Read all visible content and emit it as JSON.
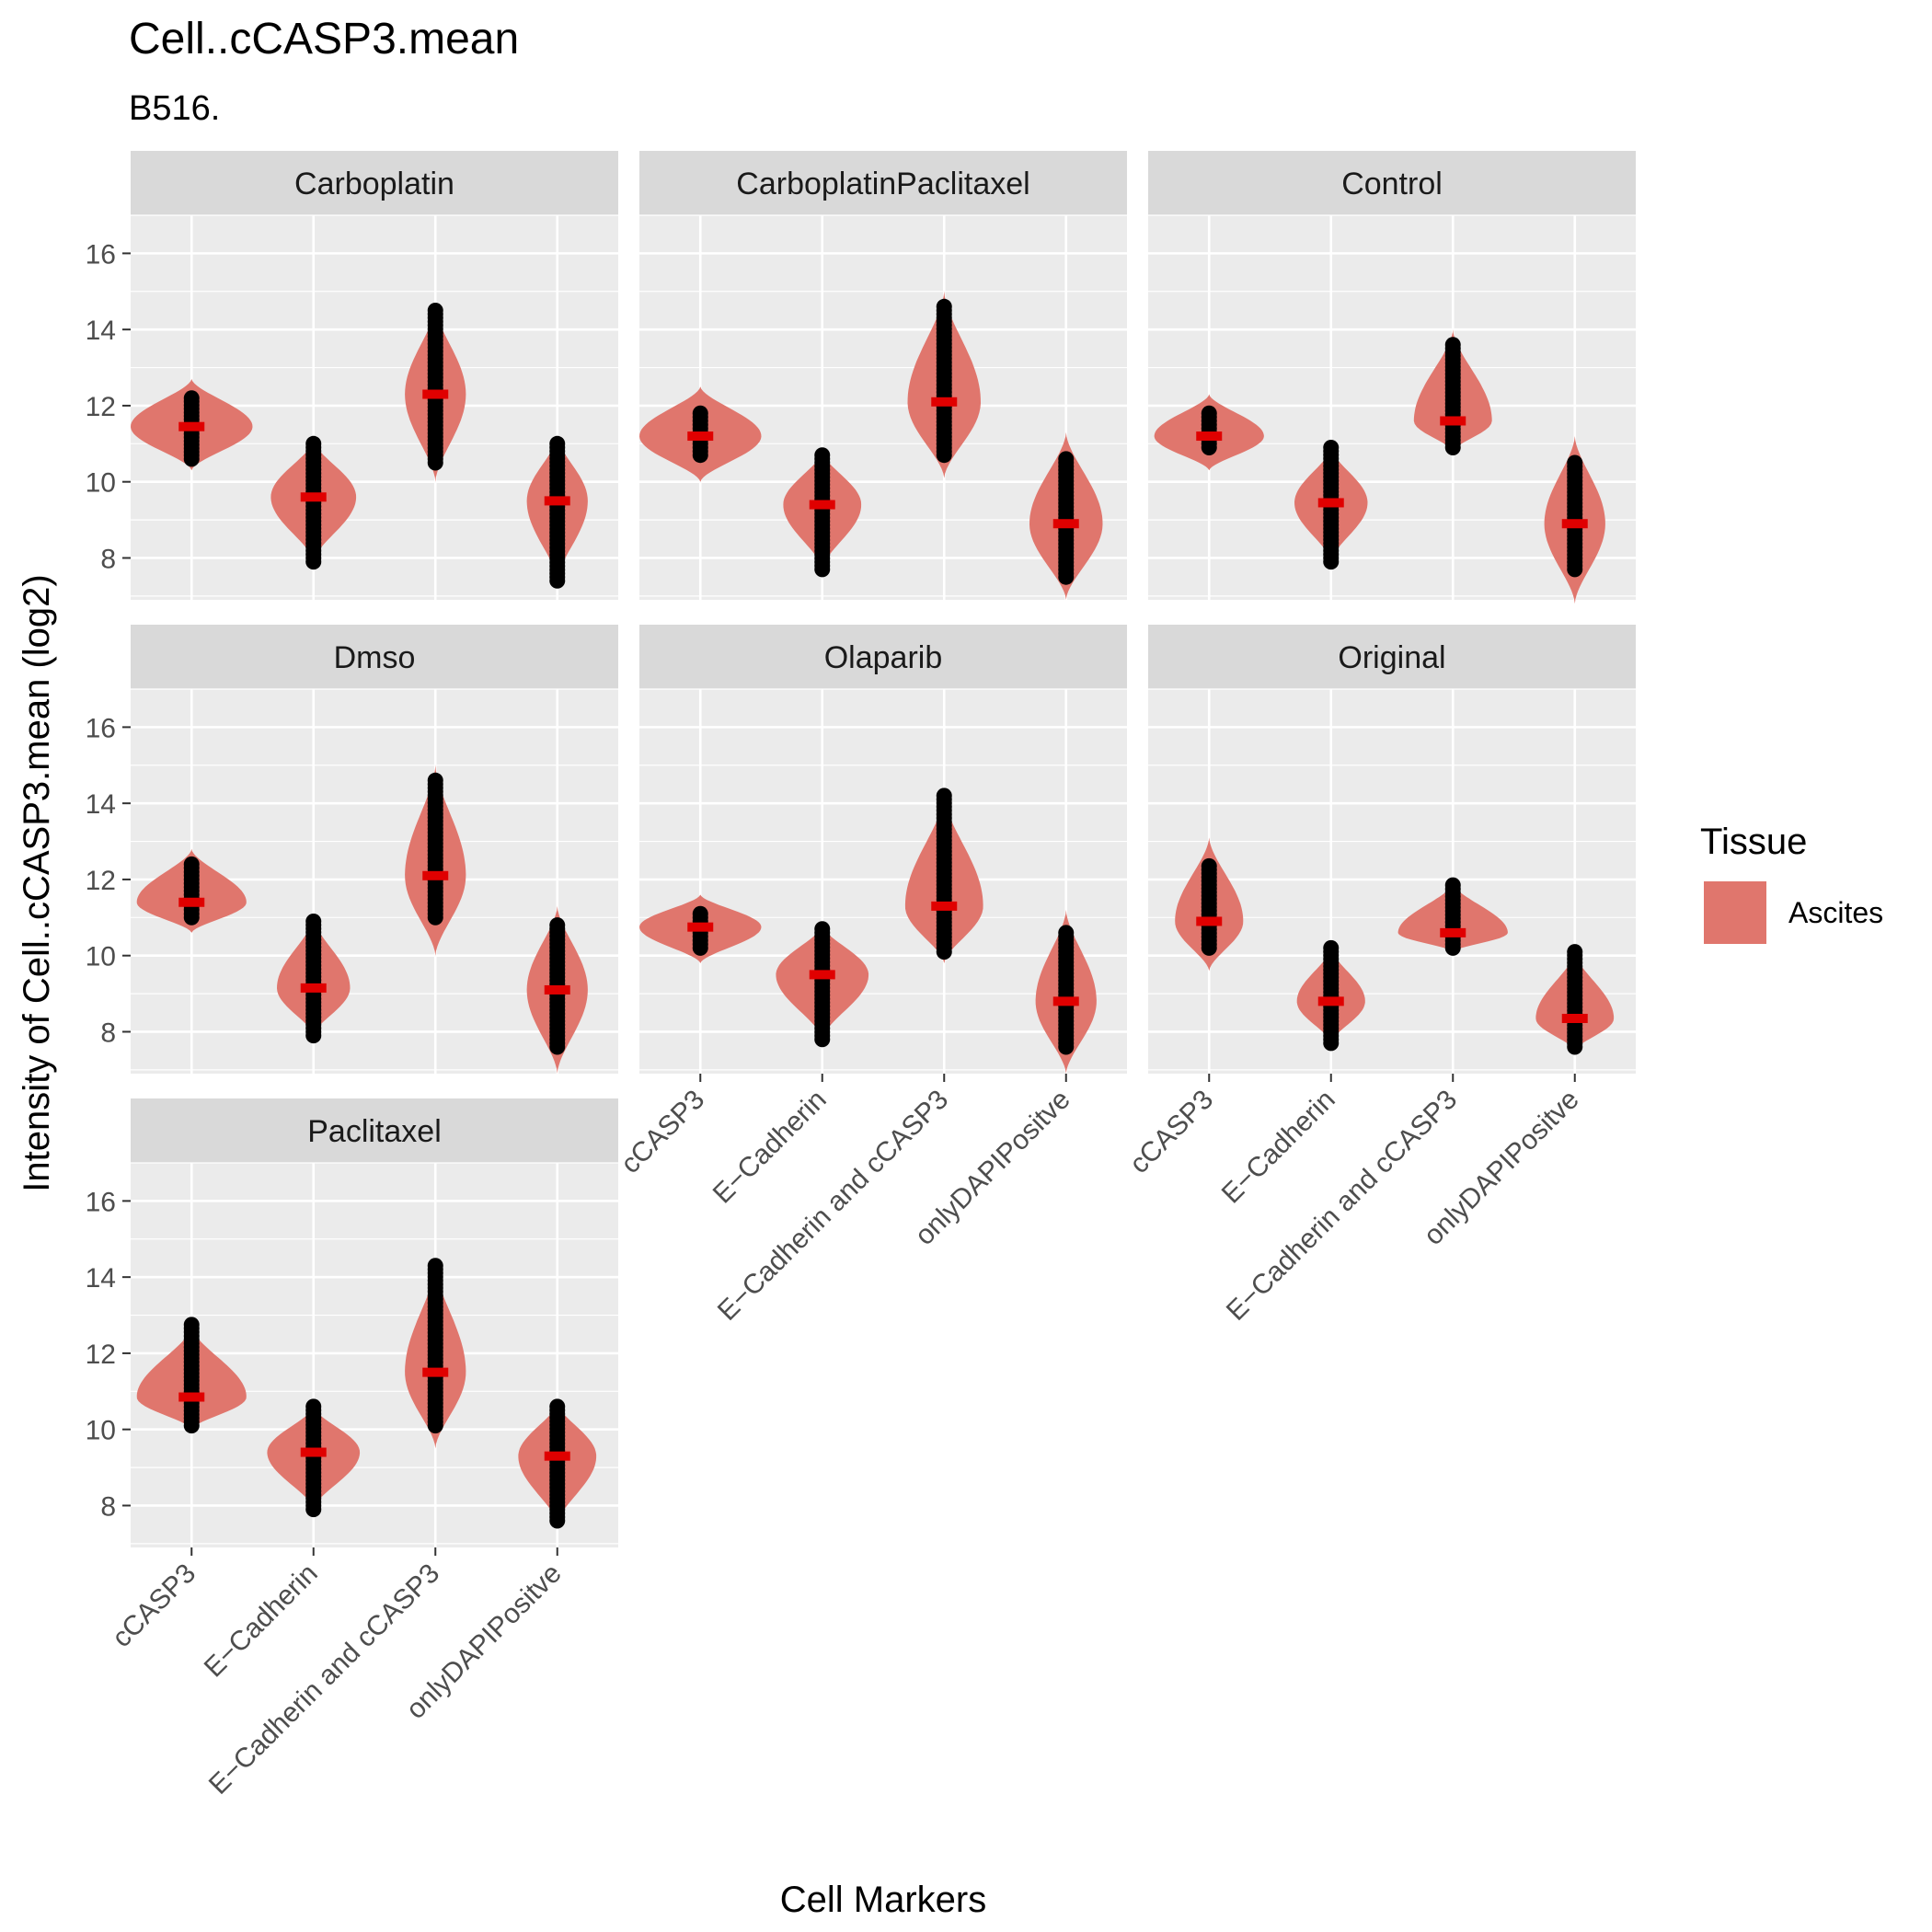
{
  "chart_data": {
    "type": "violin",
    "title": "Cell..cCASP3.mean",
    "subtitle": "B516.",
    "xlabel": "Cell Markers",
    "ylabel": "Intensity of Cell..cCASP3.mean (log2)",
    "ylim": [
      6.9,
      17.0
    ],
    "y_ticks": [
      8,
      10,
      12,
      14,
      16
    ],
    "categories": [
      "cCASP3",
      "E−Cadherin",
      "E−Cadherin and cCASP3",
      "onlyDAPIPositve"
    ],
    "legend": {
      "title": "Tissue",
      "entries": [
        {
          "label": "Ascites",
          "color": "#E0766D"
        }
      ],
      "position": "right"
    },
    "colors": {
      "violin": "#E0766D",
      "median": "#E00000",
      "point": "#000000",
      "panel_bg": "#EBEBEB",
      "strip_bg": "#D9D9D9",
      "grid": "#FFFFFF"
    },
    "facets": [
      {
        "name": "Carboplatin",
        "violins": [
          {
            "min": 10.3,
            "max": 12.7,
            "median": 11.45,
            "width": 0.5,
            "pts_min": 10.6,
            "pts_max": 12.2
          },
          {
            "min": 7.9,
            "max": 11.1,
            "median": 9.6,
            "width": 0.35,
            "pts_min": 7.9,
            "pts_max": 11.0
          },
          {
            "min": 10.0,
            "max": 14.6,
            "median": 12.3,
            "width": 0.25,
            "pts_min": 10.5,
            "pts_max": 14.5
          },
          {
            "min": 7.4,
            "max": 11.2,
            "median": 9.5,
            "width": 0.25,
            "pts_min": 7.4,
            "pts_max": 11.0
          }
        ]
      },
      {
        "name": "CarboplatinPaclitaxel",
        "violins": [
          {
            "min": 10.0,
            "max": 12.5,
            "median": 11.2,
            "width": 0.5,
            "pts_min": 10.7,
            "pts_max": 11.8
          },
          {
            "min": 7.7,
            "max": 10.8,
            "median": 9.4,
            "width": 0.32,
            "pts_min": 7.7,
            "pts_max": 10.7
          },
          {
            "min": 10.1,
            "max": 15.0,
            "median": 12.1,
            "width": 0.3,
            "pts_min": 10.7,
            "pts_max": 14.6
          },
          {
            "min": 6.9,
            "max": 11.3,
            "median": 8.9,
            "width": 0.3,
            "pts_min": 7.5,
            "pts_max": 10.6
          }
        ]
      },
      {
        "name": "Control",
        "violins": [
          {
            "min": 10.3,
            "max": 12.3,
            "median": 11.2,
            "width": 0.45,
            "pts_min": 10.9,
            "pts_max": 11.8
          },
          {
            "min": 7.9,
            "max": 10.9,
            "median": 9.45,
            "width": 0.3,
            "pts_min": 7.9,
            "pts_max": 10.9
          },
          {
            "min": 10.8,
            "max": 14.0,
            "median": 11.6,
            "width": 0.32,
            "pts_min": 10.9,
            "pts_max": 13.6
          },
          {
            "min": 6.8,
            "max": 11.2,
            "median": 8.9,
            "width": 0.25,
            "pts_min": 7.7,
            "pts_max": 10.5
          }
        ]
      },
      {
        "name": "Dmso",
        "violins": [
          {
            "min": 10.6,
            "max": 12.8,
            "median": 11.4,
            "width": 0.45,
            "pts_min": 11.0,
            "pts_max": 12.4
          },
          {
            "min": 7.9,
            "max": 11.0,
            "median": 9.15,
            "width": 0.3,
            "pts_min": 7.9,
            "pts_max": 10.9
          },
          {
            "min": 10.0,
            "max": 15.0,
            "median": 12.1,
            "width": 0.25,
            "pts_min": 11.0,
            "pts_max": 14.6
          },
          {
            "min": 6.9,
            "max": 11.3,
            "median": 9.1,
            "width": 0.25,
            "pts_min": 7.6,
            "pts_max": 10.8
          }
        ]
      },
      {
        "name": "Olaparib",
        "violins": [
          {
            "min": 9.8,
            "max": 11.6,
            "median": 10.75,
            "width": 0.5,
            "pts_min": 10.2,
            "pts_max": 11.1
          },
          {
            "min": 7.8,
            "max": 10.8,
            "median": 9.5,
            "width": 0.38,
            "pts_min": 7.8,
            "pts_max": 10.7
          },
          {
            "min": 9.8,
            "max": 14.2,
            "median": 11.3,
            "width": 0.32,
            "pts_min": 10.1,
            "pts_max": 14.2
          },
          {
            "min": 6.9,
            "max": 11.2,
            "median": 8.8,
            "width": 0.25,
            "pts_min": 7.6,
            "pts_max": 10.6
          }
        ]
      },
      {
        "name": "Original",
        "violins": [
          {
            "min": 9.6,
            "max": 13.1,
            "median": 10.9,
            "width": 0.28,
            "pts_min": 10.2,
            "pts_max": 12.35
          },
          {
            "min": 7.7,
            "max": 10.2,
            "median": 8.8,
            "width": 0.28,
            "pts_min": 7.7,
            "pts_max": 10.2
          },
          {
            "min": 10.1,
            "max": 11.9,
            "median": 10.6,
            "width": 0.45,
            "pts_min": 10.2,
            "pts_max": 11.85
          },
          {
            "min": 7.5,
            "max": 10.1,
            "median": 8.35,
            "width": 0.32,
            "pts_min": 7.6,
            "pts_max": 10.1
          }
        ]
      },
      {
        "name": "Paclitaxel",
        "violins": [
          {
            "min": 10.0,
            "max": 12.7,
            "median": 10.85,
            "width": 0.45,
            "pts_min": 10.1,
            "pts_max": 12.75
          },
          {
            "min": 7.9,
            "max": 10.6,
            "median": 9.4,
            "width": 0.38,
            "pts_min": 7.9,
            "pts_max": 10.6
          },
          {
            "min": 9.5,
            "max": 14.3,
            "median": 11.5,
            "width": 0.25,
            "pts_min": 10.1,
            "pts_max": 14.3
          },
          {
            "min": 7.5,
            "max": 10.7,
            "median": 9.3,
            "width": 0.32,
            "pts_min": 7.6,
            "pts_max": 10.6
          }
        ]
      }
    ]
  }
}
